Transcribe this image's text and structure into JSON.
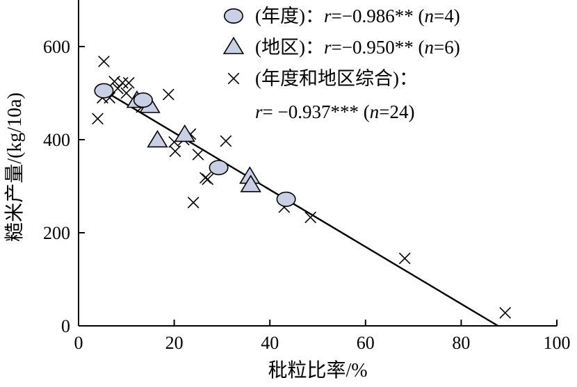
{
  "chart_data": {
    "type": "scatter",
    "xlabel": "秕粒比率/%",
    "ylabel": "糙米产量/(kg/10a)",
    "xlim": [
      0,
      100
    ],
    "ylim": [
      0,
      700
    ],
    "xticks": [
      0,
      20,
      40,
      60,
      80,
      100
    ],
    "yticks": [
      0,
      200,
      400,
      600
    ],
    "grid": false,
    "legend_position": "top-right",
    "series": [
      {
        "name": "(年度)",
        "marker": "circle",
        "color": "#c9d0e6",
        "points": [
          [
            5.3,
            505
          ],
          [
            13.5,
            485
          ],
          [
            29.3,
            340
          ],
          [
            43.4,
            272
          ]
        ]
      },
      {
        "name": "(地区)",
        "marker": "triangle",
        "color": "#c9d0e6",
        "points": [
          [
            12.2,
            483
          ],
          [
            14.9,
            472
          ],
          [
            16.5,
            398
          ],
          [
            22.2,
            410
          ],
          [
            35.8,
            320
          ],
          [
            36.0,
            302
          ]
        ]
      },
      {
        "name": "(年度和地区综合)",
        "marker": "x",
        "color": "#000000",
        "points": [
          [
            5.3,
            568
          ],
          [
            4.0,
            445
          ],
          [
            5.0,
            490
          ],
          [
            7.5,
            525
          ],
          [
            8.2,
            510
          ],
          [
            9.2,
            522
          ],
          [
            10.5,
            522
          ],
          [
            10.0,
            500
          ],
          [
            13.2,
            470
          ],
          [
            18.8,
            497
          ],
          [
            20.0,
            395
          ],
          [
            20.2,
            375
          ],
          [
            22.0,
            400
          ],
          [
            23.4,
            412
          ],
          [
            25.0,
            368
          ],
          [
            24.0,
            265
          ],
          [
            26.5,
            318
          ],
          [
            27.0,
            315
          ],
          [
            30.8,
            397
          ],
          [
            43.0,
            255
          ],
          [
            48.5,
            233
          ],
          [
            68.2,
            145
          ],
          [
            89.2,
            28
          ],
          [
            6.5,
            490
          ]
        ]
      }
    ],
    "regression": {
      "x": [
        4.5,
        87.7
      ],
      "y": [
        510,
        0
      ]
    },
    "legend": [
      {
        "marker": "circle",
        "label": "(年度)：",
        "r_label": "r",
        "r_value": "=−0.986**",
        "n_open": " (",
        "n_label": "n",
        "n_value": "=4)"
      },
      {
        "marker": "triangle",
        "label": "(地区)：",
        "r_label": "r",
        "r_value": "=−0.950**",
        "n_open": " (",
        "n_label": "n",
        "n_value": "=6)"
      },
      {
        "marker": "x",
        "label": "(年度和地区综合)：",
        "line2_r_label": "r",
        "line2_r_value": "= −0.937***",
        "line2_n_open": "  (",
        "line2_n_label": "n",
        "line2_n_value": "=24)"
      }
    ]
  }
}
